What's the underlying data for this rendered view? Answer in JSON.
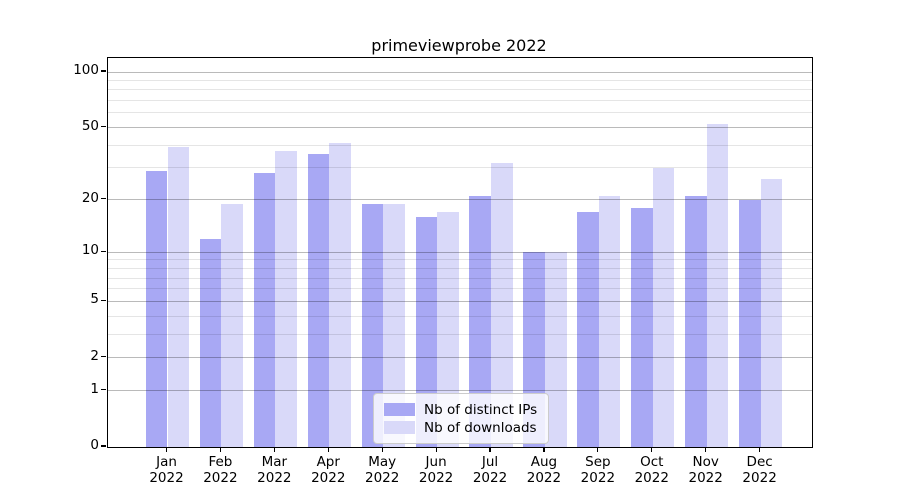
{
  "title": "primeviewprobe 2022",
  "chart_data": {
    "type": "bar",
    "title": "primeviewprobe 2022",
    "categories": [
      "Jan\n2022",
      "Feb\n2022",
      "Mar\n2022",
      "Apr\n2022",
      "May\n2022",
      "Jun\n2022",
      "Jul\n2022",
      "Aug\n2022",
      "Sep\n2022",
      "Oct\n2022",
      "Nov\n2022",
      "Dec\n2022"
    ],
    "series": [
      {
        "name": "Nb of distinct IPs",
        "color": "#a8a8f4",
        "values": [
          29,
          12,
          28,
          36,
          19,
          16,
          21,
          10,
          17,
          18,
          21,
          20
        ]
      },
      {
        "name": "Nb of downloads",
        "color": "#d9d9f9",
        "values": [
          39,
          19,
          37,
          41,
          19,
          17,
          32,
          10,
          21,
          30,
          52,
          26
        ]
      }
    ],
    "xlabel": "",
    "ylabel": "",
    "yscale": "log1p",
    "ylim": [
      0,
      119
    ],
    "yticks_major": [
      0,
      1,
      2,
      5,
      10,
      20,
      50,
      100
    ],
    "yticks_minor": [
      3,
      4,
      6,
      7,
      8,
      9,
      30,
      40,
      60,
      70,
      80,
      90
    ],
    "grid": true,
    "legend_position": "lower center"
  },
  "legend": {
    "items": [
      {
        "label": "Nb of distinct IPs",
        "color": "#a8a8f4"
      },
      {
        "label": "Nb of downloads",
        "color": "#d9d9f9"
      }
    ]
  }
}
